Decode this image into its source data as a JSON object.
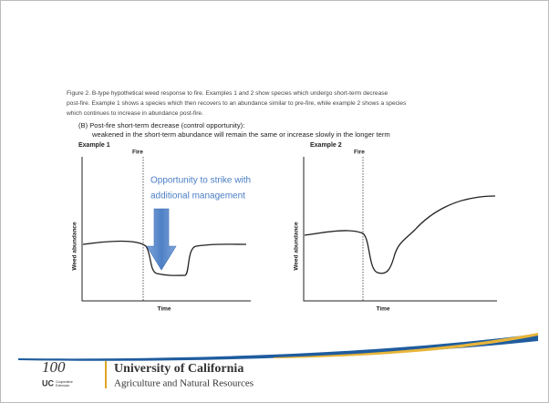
{
  "caption": [
    "Figure 2. B-type hypothetical weed response to fire. Examples 1 and 2 show species which undergo short-term decrease",
    "post-fire. Example 1 shows a species which then recovers to an abundance similar to pre-fire, while example 2 shows a species",
    "which continues to increase in abundance post-fire."
  ],
  "heading": [
    "(B) Post-fire short-term decrease (control opportunity):",
    "weakened in the short-term abundance will remain the same or increase slowly in the longer term"
  ],
  "examples": [
    {
      "title": "Example 1",
      "event": "Fire",
      "x_label": "Time",
      "y_label": "Weed abundance"
    },
    {
      "title": "Example 2",
      "event": "Fire",
      "x_label": "Time",
      "y_label": "Weed abundance"
    }
  ],
  "annotation": [
    "Opportunity to strike with",
    "additional management"
  ],
  "footer": {
    "logo": "100",
    "unit_top": "UC",
    "unit_small": [
      "Cooperative",
      "Extension"
    ],
    "university": "University of California",
    "division": "Agriculture and Natural Resources"
  }
}
